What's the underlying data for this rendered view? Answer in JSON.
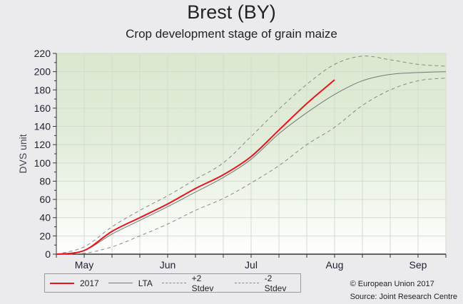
{
  "chart_data": {
    "type": "line",
    "title": "Brest (BY)",
    "subtitle": "Crop development stage of grain maize",
    "xlabel": "",
    "ylabel": "DVS unit",
    "x_unit": "dekad index (0 = late April, 1 = May start)",
    "x": [
      0,
      1,
      2,
      3,
      4,
      5,
      6,
      7,
      8,
      9,
      10,
      11,
      12,
      13,
      14
    ],
    "xlim": [
      0,
      14
    ],
    "x_ticks": [
      {
        "x": 1,
        "label": "May"
      },
      {
        "x": 4,
        "label": "Jun"
      },
      {
        "x": 7,
        "label": "Jul"
      },
      {
        "x": 10,
        "label": "Aug"
      },
      {
        "x": 13,
        "label": "Sep"
      }
    ],
    "ylim": [
      0,
      220
    ],
    "y_ticks": [
      0,
      20,
      40,
      60,
      80,
      100,
      120,
      140,
      160,
      180,
      200,
      220
    ],
    "grid": true,
    "legend_position": "bottom-left",
    "series": [
      {
        "name": "2017",
        "color": "#e8141c",
        "style": "solid",
        "values": [
          0,
          4,
          25,
          40,
          55,
          72,
          87,
          107,
          136,
          165,
          191,
          null,
          null,
          null,
          null
        ]
      },
      {
        "name": "LTA",
        "color": "#777777",
        "style": "solid",
        "values": [
          0,
          4,
          22,
          37,
          52,
          68,
          84,
          104,
          132,
          155,
          175,
          190,
          197,
          199,
          200
        ]
      },
      {
        "name": "+2 Stdev",
        "color": "#888888",
        "style": "dashed",
        "values": [
          0,
          8,
          30,
          48,
          64,
          82,
          100,
          129,
          159,
          186,
          208,
          217,
          213,
          208,
          206
        ]
      },
      {
        "name": "-2 Stdev",
        "color": "#888888",
        "style": "dashed",
        "values": [
          0,
          1,
          8,
          20,
          33,
          48,
          61,
          78,
          97,
          120,
          139,
          163,
          180,
          190,
          193
        ]
      }
    ]
  },
  "credits": {
    "copyright": "© European Union 2017",
    "source": "Source: Joint Research Centre"
  }
}
